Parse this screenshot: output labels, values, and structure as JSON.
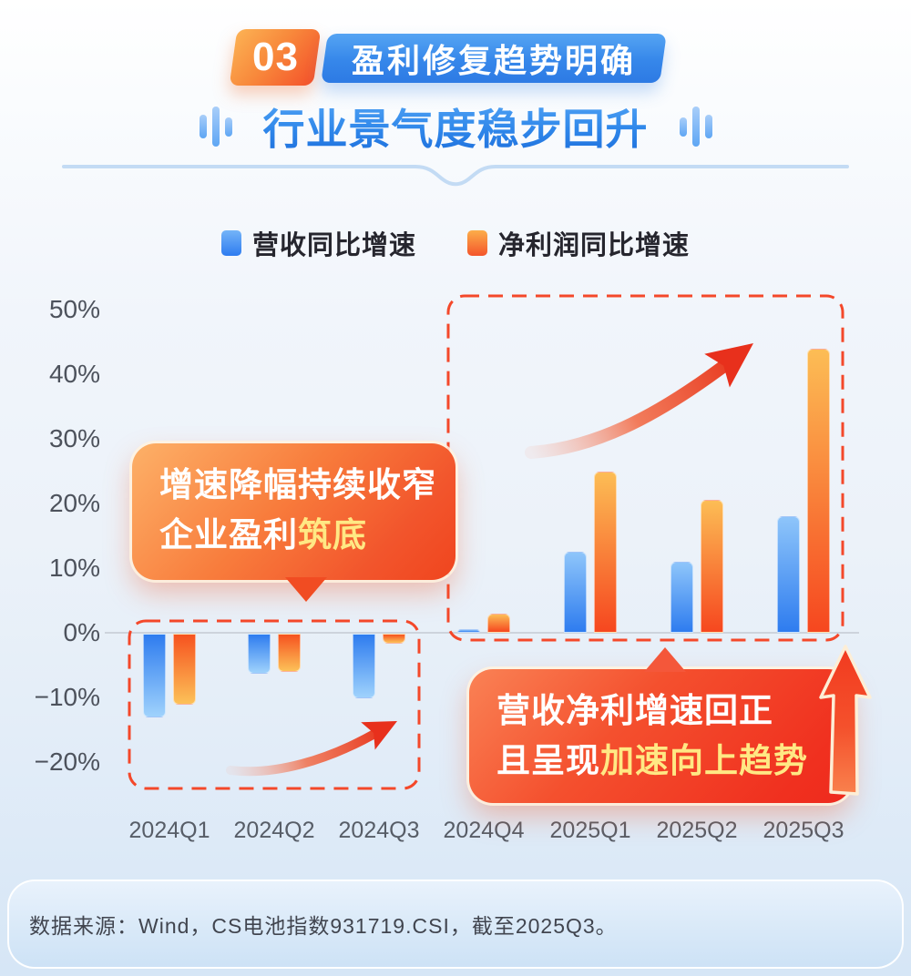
{
  "header": {
    "badge": "03",
    "banner": "盈利修复趋势明确",
    "title": "行业景气度稳步回升"
  },
  "legend": [
    {
      "label": "营收同比增速",
      "color": "#2e7cef"
    },
    {
      "label": "净利润同比增速",
      "color": "#f6552b"
    }
  ],
  "callouts": {
    "bottoming": {
      "line1": "增速降幅持续收窄",
      "line2_normal": "企业盈利",
      "line2_highlight": "筑底"
    },
    "recovery": {
      "line1": "营收净利增速回正",
      "line2_normal": "且呈现",
      "line2_highlight": "加速向上趋势"
    }
  },
  "footer": {
    "source": "数据来源：Wind，CS电池指数931719.CSI，截至2025Q3。"
  },
  "chart_data": {
    "type": "bar",
    "title": "行业景气度稳步回升",
    "categories": [
      "2024Q1",
      "2024Q2",
      "2024Q3",
      "2024Q4",
      "2025Q1",
      "2025Q2",
      "2025Q3"
    ],
    "series": [
      {
        "name": "营收同比增速",
        "color": "#2e7cef",
        "values": [
          -13,
          -6.2,
          -10,
          0.5,
          12.5,
          11,
          18
        ]
      },
      {
        "name": "净利润同比增速",
        "color": "#f6552b",
        "values": [
          -11,
          -5.9,
          -1.5,
          3,
          25,
          20.5,
          44
        ]
      }
    ],
    "yticks": [
      50,
      40,
      30,
      20,
      10,
      0,
      -10,
      -20
    ],
    "tick_suffix": "%",
    "ylim": [
      -25,
      55
    ],
    "grid": false,
    "legend_position": "top",
    "annotations": [
      "增速降幅持续收窄 企业盈利筑底",
      "营收净利增速回正 且呈现加速向上趋势"
    ]
  }
}
